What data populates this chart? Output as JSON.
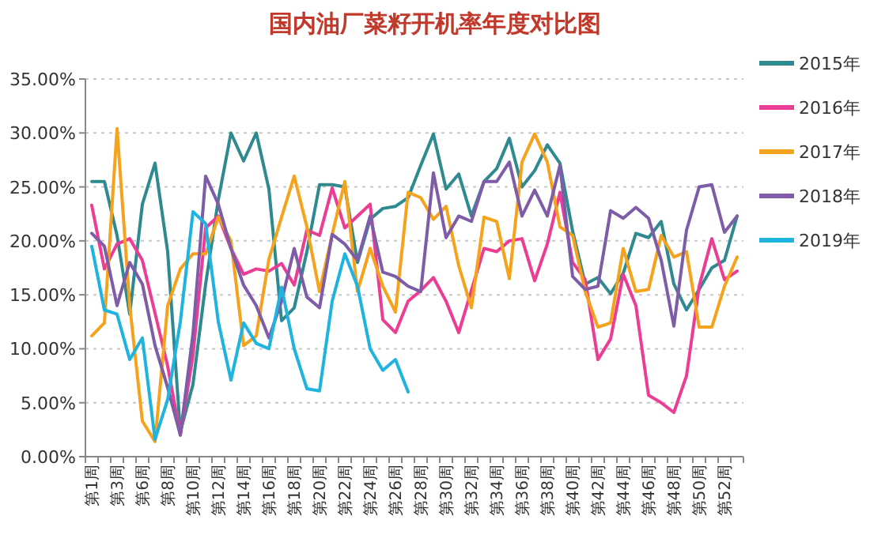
{
  "chart_data": {
    "type": "line",
    "title": "国内油厂菜籽开机率年度对比图",
    "categories": [
      "第1周",
      null,
      "第3周",
      null,
      "第6周",
      null,
      "第8周",
      null,
      "第10周",
      null,
      "第12周",
      null,
      "第14周",
      null,
      "第16周",
      null,
      "第18周",
      null,
      "第20周",
      null,
      "第22周",
      null,
      "第24周",
      null,
      "第26周",
      null,
      "第28周",
      null,
      "第30周",
      null,
      "第32周",
      null,
      "第34周",
      null,
      "第36周",
      null,
      "第38周",
      null,
      "第40周",
      null,
      "第42周",
      null,
      "第44周",
      null,
      "第46周",
      null,
      "第48周",
      null,
      "第50周",
      null,
      "第52周",
      null
    ],
    "series": [
      {
        "name": "2015年",
        "color": "#2e8a8f",
        "values": [
          25.5,
          25.5,
          20.5,
          13.2,
          23.4,
          27.2,
          19,
          2.3,
          6.7,
          16,
          23.8,
          30,
          27.4,
          30,
          24.8,
          12.6,
          13.8,
          19,
          25.2,
          25.2,
          25,
          18,
          22,
          23,
          23.2,
          24,
          27,
          29.9,
          24.8,
          26.2,
          22.3,
          25.5,
          26.7,
          29.5,
          25,
          26.5,
          28.9,
          27.2,
          20.9,
          16,
          16.6,
          15.1,
          17,
          20.7,
          20.3,
          21.8,
          16,
          13.6,
          15.5,
          17.5,
          18.2,
          22.3
        ]
      },
      {
        "name": "2016年",
        "color": "#ec3d95",
        "values": [
          23.3,
          17.4,
          19.7,
          20.2,
          18.2,
          13.3,
          8.4,
          2,
          9.4,
          21.2,
          22.3,
          19.3,
          16.9,
          17.4,
          17.2,
          17.9,
          15.9,
          21,
          20.5,
          24.9,
          21.2,
          22.3,
          23.4,
          12.7,
          11.5,
          14.4,
          15.4,
          16.6,
          14.4,
          11.5,
          15.4,
          19.3,
          19,
          20,
          20.2,
          16.3,
          19.7,
          24.5,
          18,
          16.4,
          9,
          10.9,
          16.9,
          14,
          5.7,
          5,
          4.1,
          7.5,
          15.8,
          20.2,
          16.4,
          17.2
        ]
      },
      {
        "name": "2017年",
        "color": "#f5a21c",
        "values": [
          11.2,
          12.4,
          30.4,
          14,
          3.3,
          1.4,
          14,
          17.4,
          18.8,
          18.8,
          22.2,
          20,
          10.3,
          11.2,
          18.3,
          22.2,
          26,
          21.3,
          15.3,
          20.6,
          25.5,
          15.3,
          19.3,
          15.8,
          13.4,
          24.5,
          24,
          22,
          23.2,
          17.7,
          13.8,
          22.2,
          21.8,
          16.5,
          27.3,
          29.9,
          27.3,
          21.3,
          20.5,
          15.3,
          12,
          12.4,
          19.3,
          15.3,
          15.5,
          20.5,
          18.5,
          19,
          12,
          12,
          15.8,
          18.5
        ]
      },
      {
        "name": "2018年",
        "color": "#7e5ca8",
        "values": [
          20.7,
          19.5,
          14,
          18,
          16,
          10.3,
          6.4,
          2,
          11.4,
          26,
          23.4,
          19.3,
          15.9,
          14,
          11,
          14.4,
          19.3,
          14.8,
          13.8,
          20.6,
          19.7,
          18.2,
          22.3,
          17.1,
          16.7,
          15.8,
          15.3,
          26.3,
          20.3,
          22.3,
          21.8,
          25.5,
          25.5,
          27.3,
          22.3,
          24.7,
          22.3,
          27,
          16.7,
          15.5,
          15.8,
          22.8,
          22.1,
          23.1,
          22.1,
          18.2,
          12.1,
          21,
          25,
          25.2,
          20.8,
          22.3
        ]
      },
      {
        "name": "2019年",
        "color": "#1fb3e0",
        "values": [
          19.5,
          13.6,
          13.2,
          9,
          11,
          1.6,
          5.3,
          12.5,
          22.7,
          21.6,
          12.5,
          7.1,
          12.4,
          10.5,
          10,
          15.7,
          10,
          6.3,
          6.1,
          14.4,
          18.8,
          15.8,
          10,
          8,
          9,
          6,
          null,
          null,
          null,
          null,
          null,
          null,
          null,
          null,
          null,
          null,
          null,
          null,
          null,
          null,
          null,
          null,
          null,
          null,
          null,
          null,
          null,
          null,
          null,
          null,
          null,
          null
        ]
      }
    ],
    "ylim": [
      0,
      35
    ],
    "yticks": [
      {
        "value": 0,
        "label": "0.00%"
      },
      {
        "value": 5,
        "label": "5.00%"
      },
      {
        "value": 10,
        "label": "10.00%"
      },
      {
        "value": 15,
        "label": "15.00%"
      },
      {
        "value": 20,
        "label": "20.00%"
      },
      {
        "value": 25,
        "label": "25.00%"
      },
      {
        "value": 30,
        "label": "30.00%"
      },
      {
        "value": 35,
        "label": "35.00%"
      }
    ],
    "grid": "y",
    "legend": "right"
  }
}
